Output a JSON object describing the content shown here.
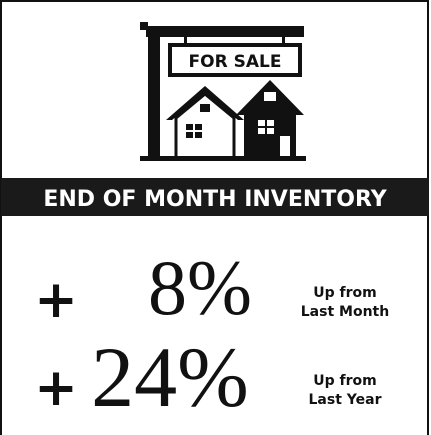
{
  "sign": {
    "label": "FOR SALE"
  },
  "banner": {
    "title": "END OF MONTH INVENTORY"
  },
  "stats": [
    {
      "sign": "+",
      "value": "8%",
      "note": [
        "Up from",
        "Last Month"
      ]
    },
    {
      "sign": "+",
      "value": "24%",
      "note": [
        "Up from",
        "Last Year"
      ]
    }
  ]
}
